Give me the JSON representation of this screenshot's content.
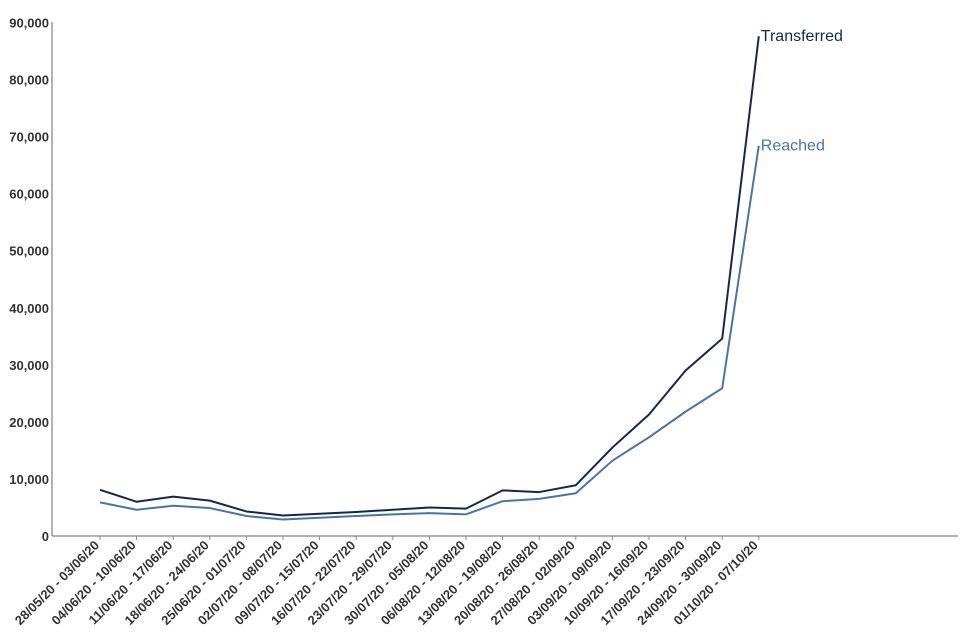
{
  "chart_data": {
    "type": "line",
    "categories": [
      "28/05/20 - 03/06/20",
      "04/06/20 - 10/06/20",
      "11/06/20 - 17/06/20",
      "18/06/20 - 24/06/20",
      "25/06/20 - 01/07/20",
      "02/07/20 - 08/07/20",
      "09/07/20 - 15/07/20",
      "16/07/20 - 22/07/20",
      "23/07/20 - 29/07/20",
      "30/07/20 - 05/08/20",
      "06/08/20 - 12/08/20",
      "13/08/20 - 19/08/20",
      "20/08/20 - 26/08/20",
      "27/08/20 - 02/09/20",
      "03/09/20 - 09/09/20",
      "10/09/20 - 16/09/20",
      "17/09/20 - 23/09/20",
      "24/09/20 - 30/09/20",
      "01/10/20 - 07/10/20"
    ],
    "series": [
      {
        "name": "Transferred",
        "color": "#14284b",
        "values": [
          8100,
          6000,
          6900,
          6200,
          4300,
          3600,
          3900,
          4200,
          4600,
          5000,
          4800,
          8000,
          7700,
          8900,
          15500,
          21300,
          29000,
          34600,
          87600
        ]
      },
      {
        "name": "Reached",
        "color": "#4a72b0",
        "values": [
          5900,
          4600,
          5300,
          4900,
          3500,
          2900,
          3200,
          3500,
          3800,
          4000,
          3800,
          6100,
          6500,
          7500,
          13200,
          17300,
          21800,
          25900,
          68400
        ]
      }
    ],
    "yticks": [
      "0",
      "10,000",
      "20,000",
      "30,000",
      "40,000",
      "50,000",
      "60,000",
      "70,000",
      "80,000",
      "90,000"
    ],
    "ylim": [
      0,
      90000
    ],
    "title": "",
    "xlabel": "",
    "ylabel": "",
    "grid": false,
    "legend": "direct labels at line ends"
  }
}
